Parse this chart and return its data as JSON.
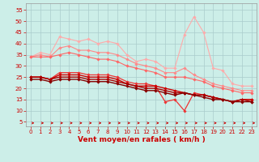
{
  "x": [
    0,
    1,
    2,
    3,
    4,
    5,
    6,
    7,
    8,
    9,
    10,
    11,
    12,
    13,
    14,
    15,
    16,
    17,
    18,
    19,
    20,
    21,
    22,
    23
  ],
  "series": [
    {
      "color": "#ffaaaa",
      "linewidth": 0.8,
      "marker": "D",
      "markersize": 1.8,
      "values": [
        34,
        36,
        35,
        43,
        42,
        41,
        42,
        40,
        41,
        40,
        35,
        32,
        33,
        32,
        29,
        29,
        44,
        52,
        45,
        29,
        28,
        22,
        21,
        21
      ]
    },
    {
      "color": "#ff8888",
      "linewidth": 0.8,
      "marker": "D",
      "markersize": 1.8,
      "values": [
        34,
        35,
        34,
        38,
        39,
        37,
        37,
        36,
        36,
        35,
        33,
        31,
        30,
        29,
        27,
        27,
        29,
        26,
        24,
        22,
        21,
        20,
        19,
        19
      ]
    },
    {
      "color": "#ff6666",
      "linewidth": 0.8,
      "marker": "D",
      "markersize": 1.8,
      "values": [
        34,
        34,
        34,
        35,
        36,
        35,
        34,
        33,
        33,
        32,
        30,
        29,
        28,
        27,
        25,
        25,
        25,
        24,
        23,
        21,
        20,
        19,
        18,
        18
      ]
    },
    {
      "color": "#ee3333",
      "linewidth": 0.9,
      "marker": "D",
      "markersize": 1.8,
      "values": [
        25,
        25,
        24,
        27,
        27,
        27,
        26,
        26,
        26,
        25,
        23,
        22,
        22,
        21,
        14,
        15,
        10,
        18,
        17,
        16,
        15,
        14,
        15,
        15
      ]
    },
    {
      "color": "#cc0000",
      "linewidth": 1.0,
      "marker": "D",
      "markersize": 1.8,
      "values": [
        25,
        25,
        24,
        26,
        26,
        26,
        25,
        25,
        25,
        24,
        22,
        21,
        21,
        21,
        20,
        19,
        18,
        17,
        17,
        16,
        15,
        14,
        15,
        15
      ]
    },
    {
      "color": "#aa0000",
      "linewidth": 1.0,
      "marker": "D",
      "markersize": 1.8,
      "values": [
        25,
        25,
        24,
        25,
        25,
        25,
        24,
        24,
        24,
        23,
        22,
        21,
        20,
        20,
        19,
        18,
        18,
        17,
        17,
        16,
        15,
        14,
        15,
        14
      ]
    },
    {
      "color": "#880000",
      "linewidth": 1.0,
      "marker": "D",
      "markersize": 1.8,
      "values": [
        24,
        24,
        23,
        24,
        24,
        24,
        23,
        23,
        23,
        22,
        21,
        20,
        19,
        19,
        18,
        17,
        18,
        17,
        16,
        15,
        15,
        14,
        14,
        14
      ]
    }
  ],
  "arrow_series_color": "#cc0000",
  "xlabel": "Vent moyen/en rafales ( km/h )",
  "xlabel_color": "#cc0000",
  "xlabel_fontsize": 6.5,
  "xtick_labels": [
    "0",
    "1",
    "2",
    "3",
    "4",
    "5",
    "6",
    "7",
    "8",
    "9",
    "10",
    "11",
    "12",
    "13",
    "14",
    "15",
    "16",
    "17",
    "18",
    "19",
    "20",
    "21",
    "22",
    "23"
  ],
  "yticks": [
    5,
    10,
    15,
    20,
    25,
    30,
    35,
    40,
    45,
    50,
    55
  ],
  "ylim": [
    3,
    58
  ],
  "xlim": [
    -0.5,
    23.5
  ],
  "bg_color": "#cceee8",
  "grid_color": "#aacccc",
  "tick_color": "#cc0000",
  "tick_fontsize": 5.0,
  "fig_width": 3.2,
  "fig_height": 2.0,
  "fig_dpi": 100
}
